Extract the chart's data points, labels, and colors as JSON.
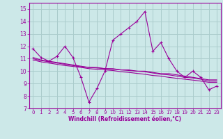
{
  "xlabel": "Windchill (Refroidissement éolien,°C)",
  "x_values": [
    0,
    1,
    2,
    3,
    4,
    5,
    6,
    7,
    8,
    9,
    10,
    11,
    12,
    13,
    14,
    15,
    16,
    17,
    18,
    19,
    20,
    21,
    22,
    23
  ],
  "y_main": [
    11.8,
    11.1,
    10.8,
    11.2,
    12.0,
    11.1,
    9.5,
    7.5,
    8.6,
    10.0,
    12.5,
    13.0,
    13.5,
    14.0,
    14.8,
    11.6,
    12.3,
    11.0,
    10.0,
    9.5,
    10.0,
    9.5,
    8.5,
    8.8
  ],
  "y_trend1": [
    11.1,
    10.9,
    10.8,
    10.7,
    10.6,
    10.5,
    10.4,
    10.3,
    10.3,
    10.2,
    10.2,
    10.1,
    10.1,
    10.0,
    10.0,
    9.9,
    9.8,
    9.8,
    9.7,
    9.6,
    9.5,
    9.4,
    9.3,
    9.3
  ],
  "y_trend2": [
    11.0,
    10.85,
    10.75,
    10.65,
    10.55,
    10.45,
    10.35,
    10.3,
    10.25,
    10.2,
    10.15,
    10.1,
    10.05,
    10.0,
    9.95,
    9.85,
    9.75,
    9.7,
    9.6,
    9.5,
    9.45,
    9.35,
    9.2,
    9.2
  ],
  "y_trend3": [
    10.9,
    10.75,
    10.65,
    10.55,
    10.45,
    10.38,
    10.3,
    10.2,
    10.15,
    10.1,
    10.05,
    9.95,
    9.9,
    9.82,
    9.75,
    9.65,
    9.6,
    9.5,
    9.42,
    9.35,
    9.28,
    9.2,
    9.1,
    9.1
  ],
  "line_color": "#990099",
  "bg_color": "#cce8e8",
  "grid_color": "#aacccc",
  "ylim": [
    7,
    15.5
  ],
  "yticks": [
    7,
    8,
    9,
    10,
    11,
    12,
    13,
    14,
    15
  ],
  "marker": "+"
}
